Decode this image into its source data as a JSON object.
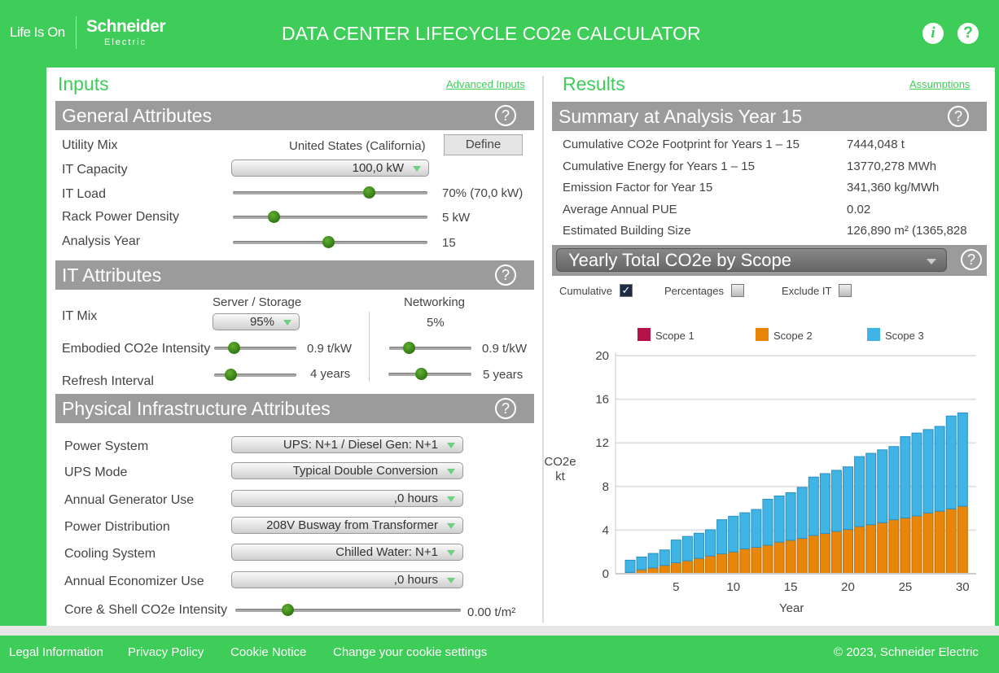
{
  "header": {
    "tagline": "Life Is On",
    "brand": "Schneider",
    "brand_sub": "Electric",
    "title": "DATA CENTER LIFECYCLE CO2e CALCULATOR",
    "info_icon": "info-icon",
    "help_icon": "help-icon"
  },
  "inputs": {
    "title": "Inputs",
    "advanced_link": "Advanced Inputs",
    "general": {
      "title": "General Attributes",
      "utility_mix_label": "Utility Mix",
      "utility_mix_value": "United States (California)",
      "define_button": "Define",
      "it_capacity_label": "IT Capacity",
      "it_capacity_value": "100,0 kW",
      "it_load_label": "IT Load",
      "it_load_value": "70% (70,0 kW)",
      "it_load_level": 0.7,
      "rack_label": "Rack Power Density",
      "rack_value": "5 kW",
      "rack_level": 0.21,
      "year_label": "Analysis Year",
      "year_value": "15",
      "year_level": 0.49
    },
    "it": {
      "title": "IT Attributes",
      "server_header": "Server / Storage",
      "network_header": "Networking",
      "mix_label": "IT Mix",
      "server_mix": "95%",
      "network_mix": "5%",
      "embodied_label": "Embodied CO2e Intensity",
      "server_embodied": "0.9 t/kW",
      "network_embodied": "0.9 t/kW",
      "server_embodied_level": 0.24,
      "network_embodied_level": 0.24,
      "refresh_label": "Refresh Interval",
      "server_refresh": "4 years",
      "network_refresh": "5 years",
      "server_refresh_level": 0.2,
      "network_refresh_level": 0.39
    },
    "physical": {
      "title": "Physical Infrastructure Attributes",
      "rows": [
        {
          "label": "Power System",
          "value": "UPS: N+1 / Diesel Gen: N+1"
        },
        {
          "label": "UPS Mode",
          "value": "Typical Double Conversion"
        },
        {
          "label": "Annual Generator Use",
          "value": ",0 hours"
        },
        {
          "label": "Power Distribution",
          "value": "208V Busway from Transformer"
        },
        {
          "label": "Cooling System",
          "value": "Chilled Water: N+1"
        },
        {
          "label": "Annual Economizer Use",
          "value": ",0 hours"
        }
      ],
      "core_label": "Core & Shell CO2e Intensity",
      "core_value": "0.00 t/m²",
      "core_level": 0.23
    }
  },
  "results": {
    "title": "Results",
    "assumptions_link": "Assumptions",
    "summary": {
      "title": "Summary at Analysis Year 15",
      "rows": [
        {
          "label": "Cumulative CO2e Footprint for Years 1 – 15",
          "value": "7444,048 t"
        },
        {
          "label": "Cumulative Energy for Years 1 – 15",
          "value": "13770,278 MWh"
        },
        {
          "label": "Emission Factor for Year 15",
          "value": "341,360 kg/MWh"
        },
        {
          "label": "Average Annual PUE",
          "value": "0.02"
        },
        {
          "label": "Estimated Building Size",
          "value": "126,890 m² (1365,828"
        }
      ]
    },
    "chart_select": "Yearly Total CO2e by Scope",
    "options": {
      "cumulative": "Cumulative",
      "cumulative_checked": true,
      "percentages": "Percentages",
      "percentages_checked": false,
      "exclude_it": "Exclude IT",
      "exclude_it_checked": false
    }
  },
  "chart_data": {
    "type": "bar",
    "stacked": true,
    "xlabel": "Year",
    "ylabel": "CO2e kt",
    "ylim": [
      0,
      20
    ],
    "yticks": [
      "0",
      "4",
      "8",
      "12",
      "16",
      "20"
    ],
    "xticks": [
      "5",
      "10",
      "15",
      "20",
      "25",
      "30"
    ],
    "grid": true,
    "legend": "top",
    "x": [
      1,
      2,
      3,
      4,
      5,
      6,
      7,
      8,
      9,
      10,
      11,
      12,
      13,
      14,
      15,
      16,
      17,
      18,
      19,
      20,
      21,
      22,
      23,
      24,
      25,
      26,
      27,
      28,
      29,
      30
    ],
    "series": [
      {
        "name": "Scope 1",
        "color": "#b5124a",
        "values": [
          0,
          0,
          0,
          0,
          0,
          0,
          0,
          0,
          0,
          0,
          0,
          0,
          0,
          0,
          0,
          0,
          0,
          0,
          0,
          0,
          0,
          0,
          0,
          0,
          0,
          0,
          0,
          0,
          0,
          0
        ]
      },
      {
        "name": "Scope 2",
        "color": "#e8860a",
        "values": [
          0.12,
          0.37,
          0.54,
          0.77,
          1.01,
          1.19,
          1.41,
          1.63,
          1.83,
          2.0,
          2.28,
          2.43,
          2.62,
          2.9,
          3.07,
          3.24,
          3.51,
          3.69,
          3.89,
          4.06,
          4.33,
          4.5,
          4.68,
          4.95,
          5.12,
          5.3,
          5.57,
          5.74,
          5.94,
          6.19
        ]
      },
      {
        "name": "Scope 3",
        "color": "#40b4e5",
        "values": [
          1.12,
          1.16,
          1.32,
          1.41,
          2.08,
          2.23,
          2.3,
          2.4,
          3.12,
          3.27,
          3.31,
          3.46,
          4.21,
          4.23,
          4.36,
          4.68,
          5.35,
          5.49,
          5.59,
          5.74,
          6.41,
          6.54,
          6.68,
          6.71,
          7.45,
          7.6,
          7.65,
          7.77,
          8.52,
          8.56
        ]
      }
    ]
  },
  "footer": {
    "links": [
      "Legal Information",
      "Privacy Policy",
      "Cookie Notice",
      "Change your cookie settings"
    ],
    "copyright": "© 2023, Schneider Electric"
  },
  "colors": {
    "brand_green": "#3dcd58",
    "section_gray": "#9b9b9b"
  }
}
